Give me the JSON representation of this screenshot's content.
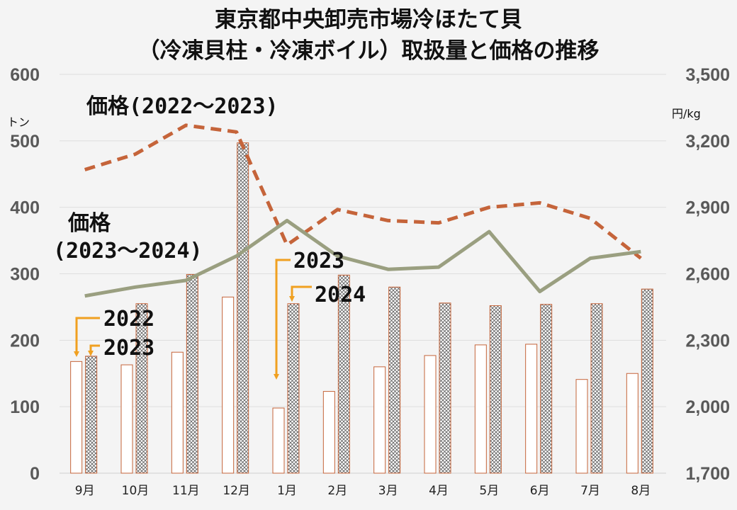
{
  "chart_data": {
    "type": "bar",
    "title_lines": [
      "東京都中央卸売市場冷ほたて貝",
      "（冷凍貝柱・冷凍ボイル）取扱量と価格の推移"
    ],
    "categories": [
      "9月",
      "10月",
      "11月",
      "12月",
      "1月",
      "2月",
      "3月",
      "4月",
      "5月",
      "6月",
      "7月",
      "8月"
    ],
    "left_axis": {
      "unit": "トン",
      "ylim": [
        0,
        600
      ],
      "ticks": [
        "0",
        "100",
        "200",
        "300",
        "400",
        "500",
        "600"
      ]
    },
    "right_axis": {
      "unit": "円/kg",
      "ylim": [
        1700,
        3500
      ],
      "ticks": [
        "1,700",
        "2,000",
        "2,300",
        "2,600",
        "2,900",
        "3,200",
        "3,500"
      ]
    },
    "bar_series": [
      {
        "name": "2022",
        "values": [
          168,
          163,
          182,
          265,
          98,
          123,
          160,
          177,
          193,
          194,
          141,
          150
        ]
      },
      {
        "name": "2023",
        "values": [
          176,
          255,
          299,
          497,
          255,
          298,
          280,
          256,
          252,
          254,
          255,
          277
        ]
      }
    ],
    "line_series": [
      {
        "name": "価格(2022～2023)",
        "values": [
          3070,
          3140,
          3270,
          3240,
          2730,
          2890,
          2840,
          2830,
          2900,
          2920,
          2850,
          2670
        ],
        "color": "#c5643a",
        "dashed": true
      },
      {
        "name": "価格(2023～2024)",
        "values": [
          2500,
          2540,
          2570,
          2680,
          2840,
          2680,
          2620,
          2630,
          2790,
          2520,
          2670,
          2700
        ],
        "color": "#9a9f80",
        "dashed": false
      }
    ],
    "annotations": {
      "price_2022_2023": "価格(2022～2023)",
      "price_2023_2024_line1": "価格",
      "price_2023_2024_line2": "(2023～2024)",
      "bar_2022": "2022",
      "bar_2023": "2023",
      "bar_jan_2023": "2023",
      "bar_jan_2024": "2024"
    },
    "grid": true,
    "colors": {
      "bar_2022": "#c5643a",
      "bar_2023": "#c5643a",
      "arrow": "#f0a020"
    }
  }
}
